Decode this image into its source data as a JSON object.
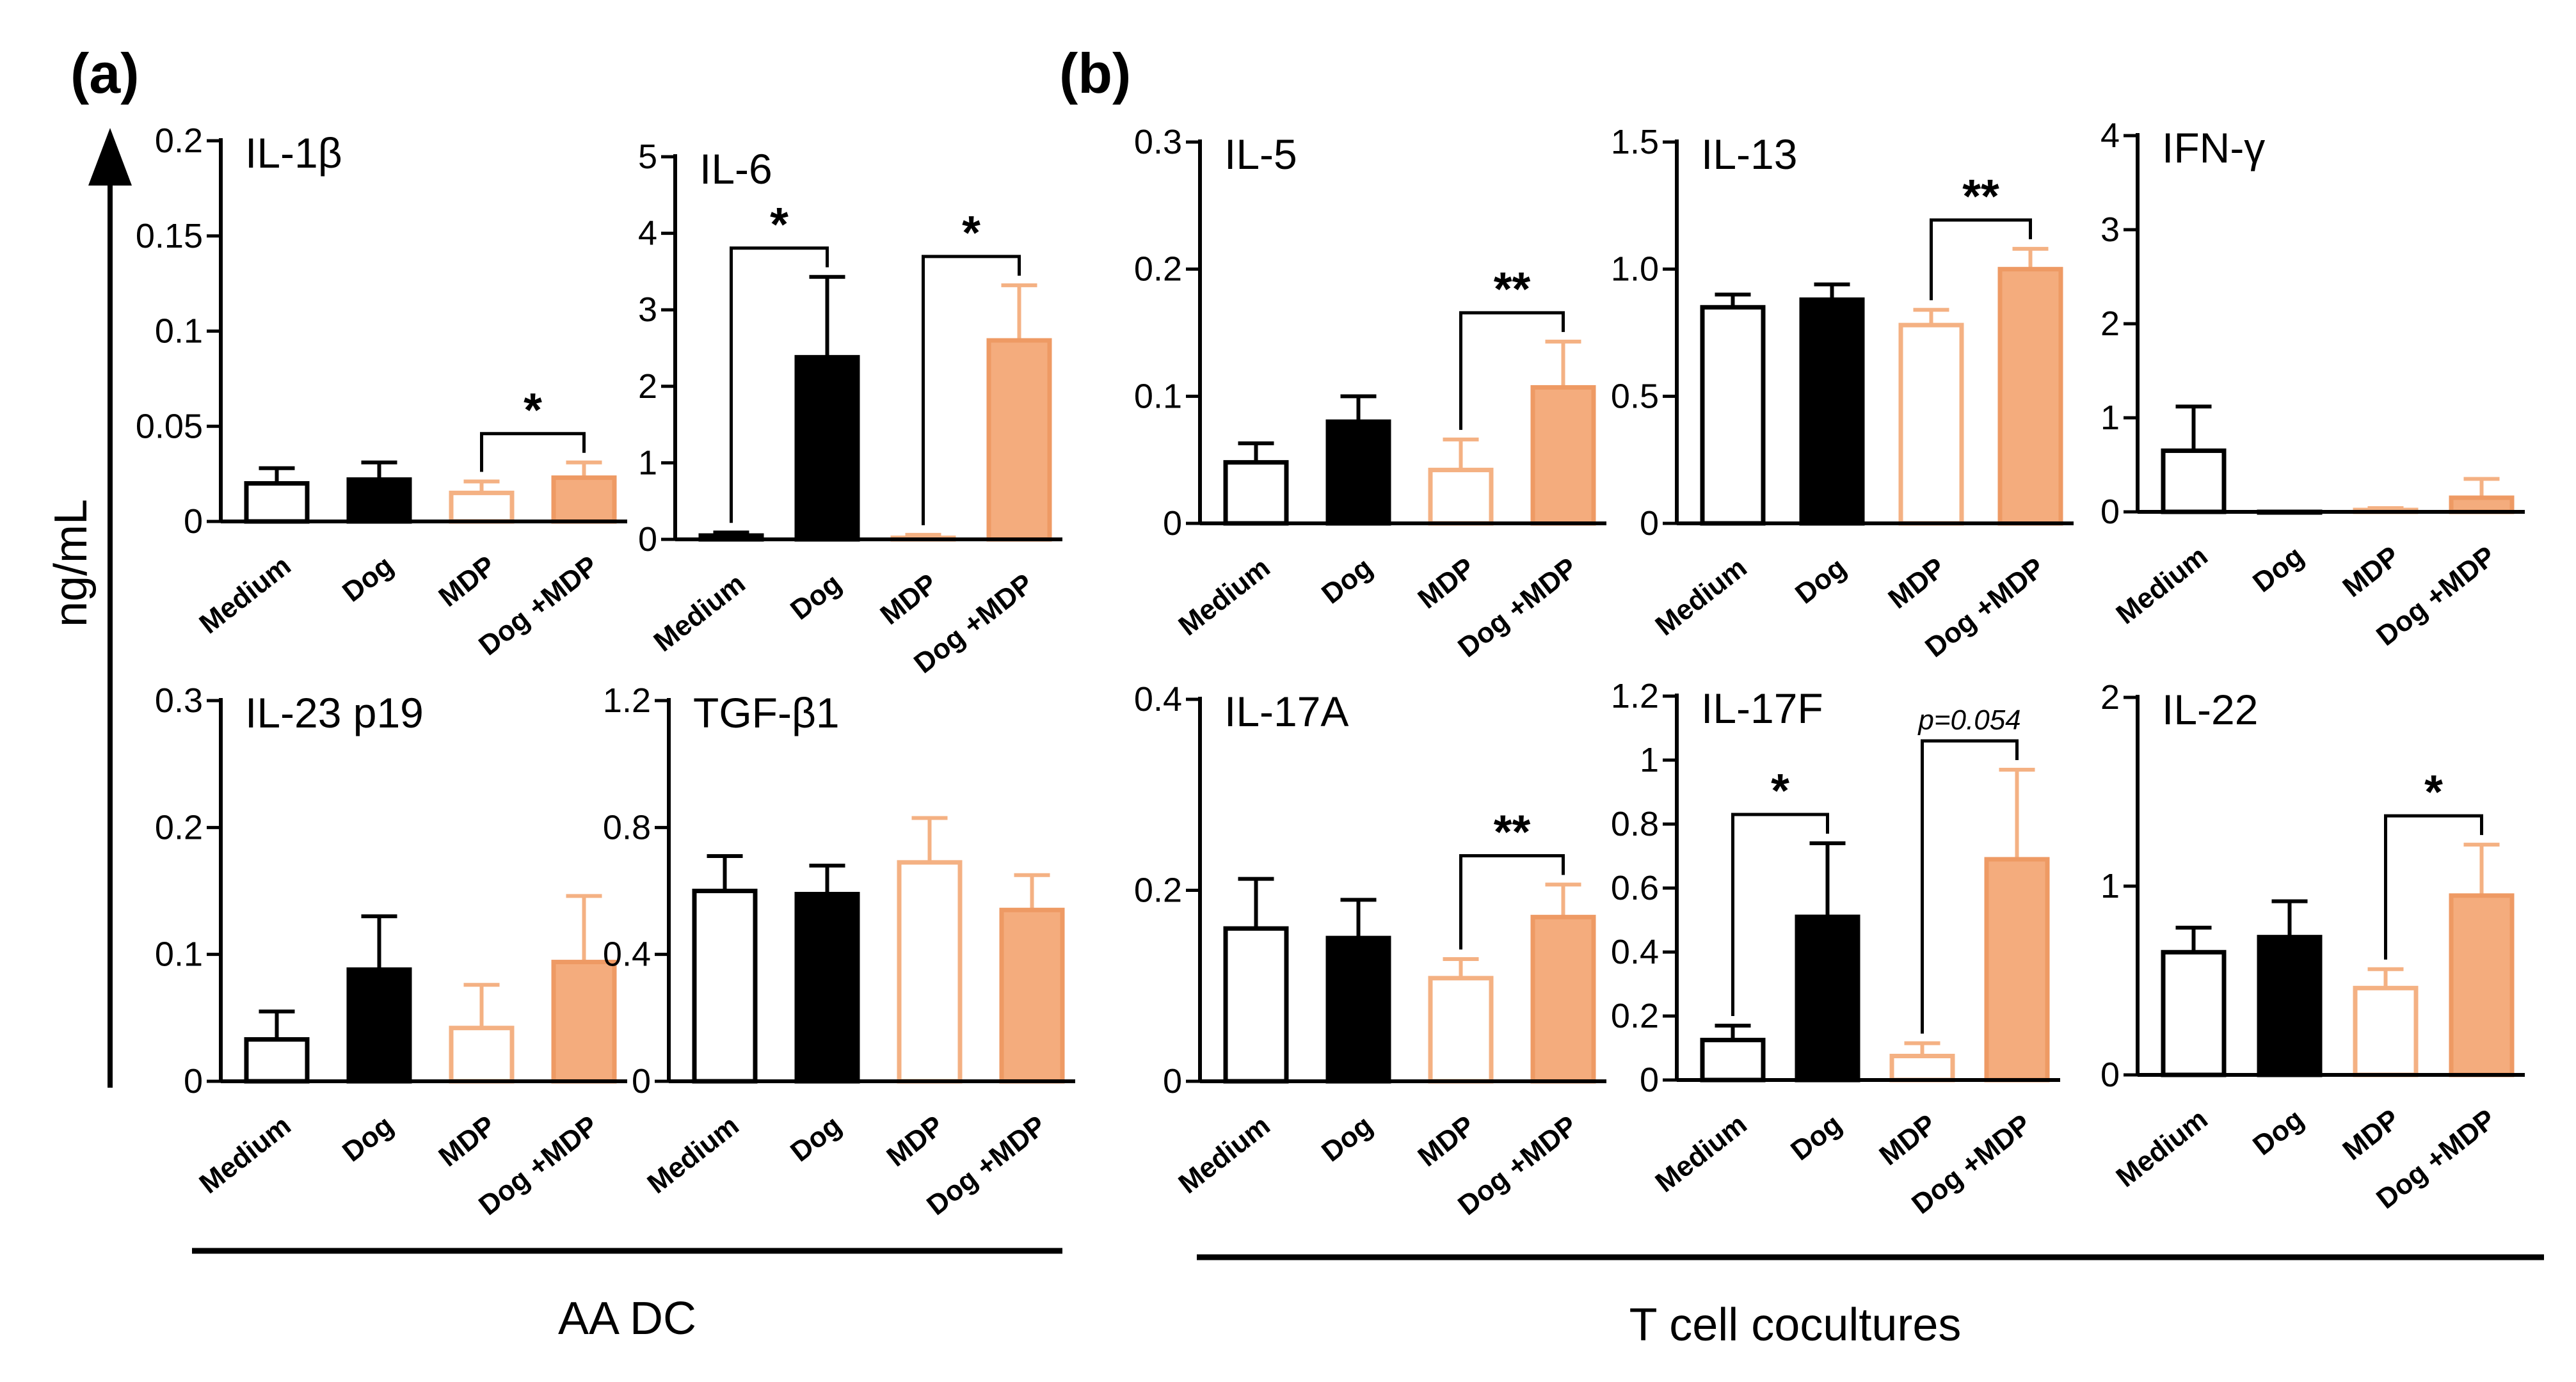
{
  "figure": {
    "panel_a_label": "(a)",
    "panel_b_label": "(b)",
    "y_axis_label": "ng/mL",
    "group_a_label": "AA DC",
    "group_b_label": "T cell cocultures"
  },
  "colors": {
    "black": "#000000",
    "orange_outline": "#F4B183",
    "orange_fill": "#F4AC7D",
    "orange_stroke": "#EE9A64"
  },
  "chart_data": [
    {
      "id": "il1b",
      "type": "bar",
      "title": "IL-1β",
      "categories": [
        "Medium",
        "Dog",
        "MDP",
        "Dog +MDP"
      ],
      "values": [
        0.02,
        0.022,
        0.015,
        0.023
      ],
      "errors": [
        0.008,
        0.009,
        0.006,
        0.008
      ],
      "ylim": [
        0,
        0.2
      ],
      "yticks": [
        0,
        0.05,
        0.1,
        0.15,
        0.2
      ],
      "ytick_labels": [
        "0",
        "0.05",
        "0.1",
        "0.15",
        "0.2"
      ],
      "significance": [
        {
          "from": 2,
          "to": 3,
          "label": "*"
        }
      ]
    },
    {
      "id": "il6",
      "type": "bar",
      "title": "IL-6",
      "categories": [
        "Medium",
        "Dog",
        "MDP",
        "Dog +MDP"
      ],
      "values": [
        0.05,
        2.38,
        0.02,
        2.6
      ],
      "errors": [
        0.04,
        1.05,
        0.04,
        0.72
      ],
      "ylim": [
        0,
        5
      ],
      "yticks": [
        0,
        1,
        2,
        3,
        4,
        5
      ],
      "ytick_labels": [
        "0",
        "1",
        "2",
        "3",
        "4",
        "5"
      ],
      "significance": [
        {
          "from": 0,
          "to": 1,
          "label": "*"
        },
        {
          "from": 2,
          "to": 3,
          "label": "*"
        }
      ]
    },
    {
      "id": "il23",
      "type": "bar",
      "title": "IL-23 p19",
      "categories": [
        "Medium",
        "Dog",
        "MDP",
        "Dog +MDP"
      ],
      "values": [
        0.033,
        0.088,
        0.042,
        0.094
      ],
      "errors": [
        0.022,
        0.042,
        0.034,
        0.052
      ],
      "ylim": [
        0,
        0.3
      ],
      "yticks": [
        0,
        0.1,
        0.2,
        0.3
      ],
      "ytick_labels": [
        "0",
        "0.1",
        "0.2",
        "0.3"
      ],
      "significance": []
    },
    {
      "id": "tgfb1",
      "type": "bar",
      "title": "TGF-β1",
      "categories": [
        "Medium",
        "Dog",
        "MDP",
        "Dog +MDP"
      ],
      "values": [
        0.6,
        0.59,
        0.69,
        0.54
      ],
      "errors": [
        0.11,
        0.09,
        0.14,
        0.11
      ],
      "ylim": [
        0,
        1.2
      ],
      "yticks": [
        0,
        0.4,
        0.8,
        1.2
      ],
      "ytick_labels": [
        "0",
        "0.4",
        "0.8",
        "1.2"
      ],
      "significance": []
    },
    {
      "id": "il5",
      "type": "bar",
      "title": "IL-5",
      "categories": [
        "Medium",
        "Dog",
        "MDP",
        "Dog +MDP"
      ],
      "values": [
        0.048,
        0.08,
        0.042,
        0.107
      ],
      "errors": [
        0.015,
        0.02,
        0.024,
        0.036
      ],
      "ylim": [
        0,
        0.3
      ],
      "yticks": [
        0,
        0.1,
        0.2,
        0.3
      ],
      "ytick_labels": [
        "0",
        "0.1",
        "0.2",
        "0.3"
      ],
      "significance": [
        {
          "from": 2,
          "to": 3,
          "label": "**"
        }
      ]
    },
    {
      "id": "il13",
      "type": "bar",
      "title": "IL-13",
      "categories": [
        "Medium",
        "Dog",
        "MDP",
        "Dog +MDP"
      ],
      "values": [
        0.85,
        0.88,
        0.78,
        1.0
      ],
      "errors": [
        0.05,
        0.06,
        0.06,
        0.08
      ],
      "ylim": [
        0,
        1.5
      ],
      "yticks": [
        0,
        0.5,
        1.0,
        1.5
      ],
      "ytick_labels": [
        "0",
        "0.5",
        "1.0",
        "1.5"
      ],
      "significance": [
        {
          "from": 2,
          "to": 3,
          "label": "**"
        }
      ]
    },
    {
      "id": "ifng",
      "type": "bar",
      "title": "IFN-γ",
      "categories": [
        "Medium",
        "Dog",
        "MDP",
        "Dog +MDP"
      ],
      "values": [
        0.65,
        0,
        0.02,
        0.15
      ],
      "errors": [
        0.47,
        0,
        0.02,
        0.2
      ],
      "ylim": [
        0,
        4
      ],
      "yticks": [
        0,
        1,
        2,
        3,
        4
      ],
      "ytick_labels": [
        "0",
        "1",
        "2",
        "3",
        "4"
      ],
      "significance": []
    },
    {
      "id": "il17a",
      "type": "bar",
      "title": "IL-17A",
      "categories": [
        "Medium",
        "Dog",
        "MDP",
        "Dog +MDP"
      ],
      "values": [
        0.16,
        0.15,
        0.108,
        0.172
      ],
      "errors": [
        0.052,
        0.04,
        0.02,
        0.034
      ],
      "ylim": [
        0,
        0.4
      ],
      "yticks": [
        0,
        0.2,
        0.4
      ],
      "ytick_labels": [
        "0",
        "0.2",
        "0.4"
      ],
      "significance": [
        {
          "from": 2,
          "to": 3,
          "label": "**"
        }
      ]
    },
    {
      "id": "il17f",
      "type": "bar",
      "title": "IL-17F",
      "categories": [
        "Medium",
        "Dog",
        "MDP",
        "Dog +MDP"
      ],
      "values": [
        0.125,
        0.51,
        0.075,
        0.69
      ],
      "errors": [
        0.045,
        0.23,
        0.04,
        0.28
      ],
      "ylim": [
        0,
        1.2
      ],
      "yticks": [
        0,
        0.2,
        0.4,
        0.6,
        0.8,
        1,
        1.2
      ],
      "ytick_labels": [
        "0",
        "0.2",
        "0.4",
        "0.6",
        "0.8",
        "1",
        "1.2"
      ],
      "significance": [
        {
          "from": 0,
          "to": 1,
          "label": "*"
        },
        {
          "from": 2,
          "to": 3,
          "label": "p=0.054"
        }
      ]
    },
    {
      "id": "il22",
      "type": "bar",
      "title": "IL-22",
      "categories": [
        "Medium",
        "Dog",
        "MDP",
        "Dog +MDP"
      ],
      "values": [
        0.65,
        0.73,
        0.46,
        0.95
      ],
      "errors": [
        0.13,
        0.19,
        0.1,
        0.27
      ],
      "ylim": [
        0,
        2
      ],
      "yticks": [
        0,
        1,
        2
      ],
      "ytick_labels": [
        "0",
        "1",
        "2"
      ],
      "significance": [
        {
          "from": 2,
          "to": 3,
          "label": "*"
        }
      ]
    }
  ]
}
